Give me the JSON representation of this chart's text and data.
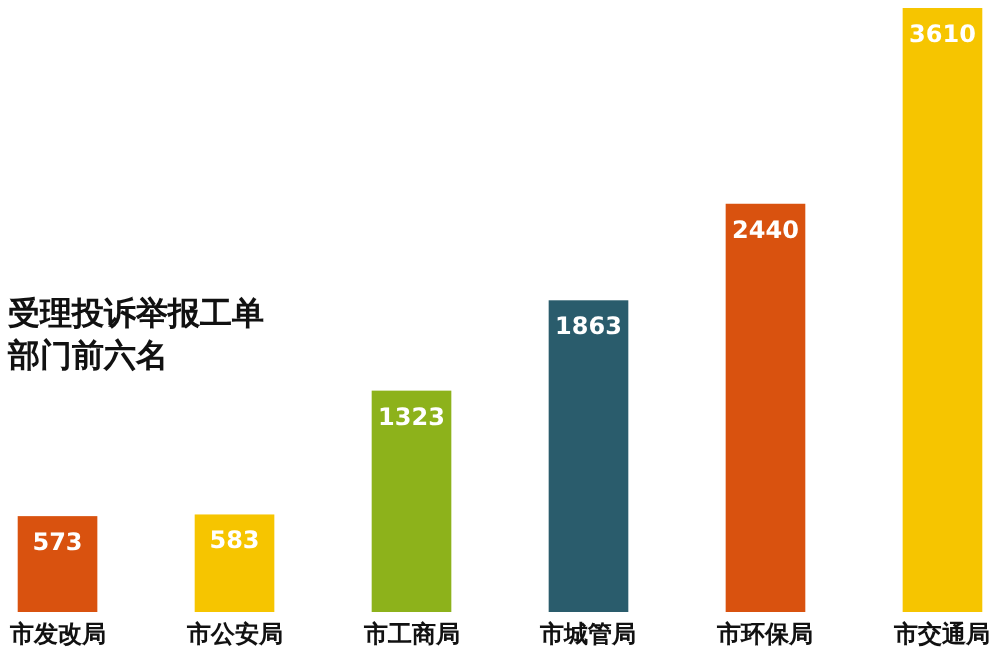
{
  "chart_data": {
    "type": "bar",
    "title": "受理投诉举报工单部门前六名",
    "categories": [
      "市发改局",
      "市公安局",
      "市工商局",
      "市城管局",
      "市环保局",
      "市交通局"
    ],
    "values": [
      573,
      583,
      1323,
      1863,
      2440,
      3610
    ],
    "colors": [
      "#d9520f",
      "#f6c500",
      "#8db21b",
      "#2a5c6c",
      "#d9520f",
      "#f6c500"
    ],
    "data_labels": true
  }
}
